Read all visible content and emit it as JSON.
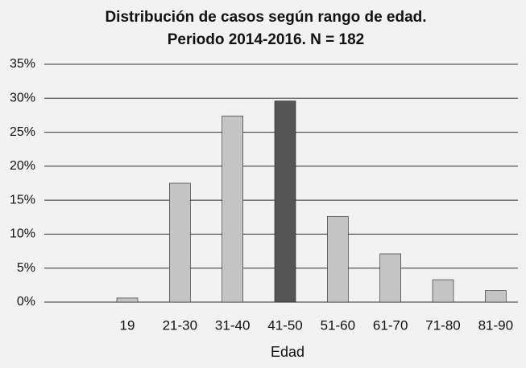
{
  "chart_data": {
    "type": "bar",
    "title": "Distribución de casos según rango de edad.",
    "subtitle": "Periodo 2014-2016. N = 182",
    "x_label": "Edad",
    "categories": [
      null,
      "19",
      "21-30",
      "31-40",
      "41-50",
      "51-60",
      "61-70",
      "71-80",
      "81-90"
    ],
    "values": [
      null,
      0.6,
      17.5,
      27.4,
      29.6,
      12.6,
      7.1,
      3.3,
      1.7
    ],
    "colors": [
      "#c4c4c4",
      "#c4c4c4",
      "#c4c4c4",
      "#c4c4c4",
      "#555555",
      "#c4c4c4",
      "#c4c4c4",
      "#c4c4c4",
      "#c4c4c4"
    ],
    "ylim": [
      0,
      35
    ],
    "yticks": [
      {
        "value": 0,
        "label": "0%"
      },
      {
        "value": 5,
        "label": "5%"
      },
      {
        "value": 10,
        "label": "10%"
      },
      {
        "value": 15,
        "label": "15%"
      },
      {
        "value": 20,
        "label": "20%"
      },
      {
        "value": 25,
        "label": "25%"
      },
      {
        "value": 30,
        "label": "30%"
      },
      {
        "value": 35,
        "label": "35%"
      }
    ],
    "grid": true
  }
}
